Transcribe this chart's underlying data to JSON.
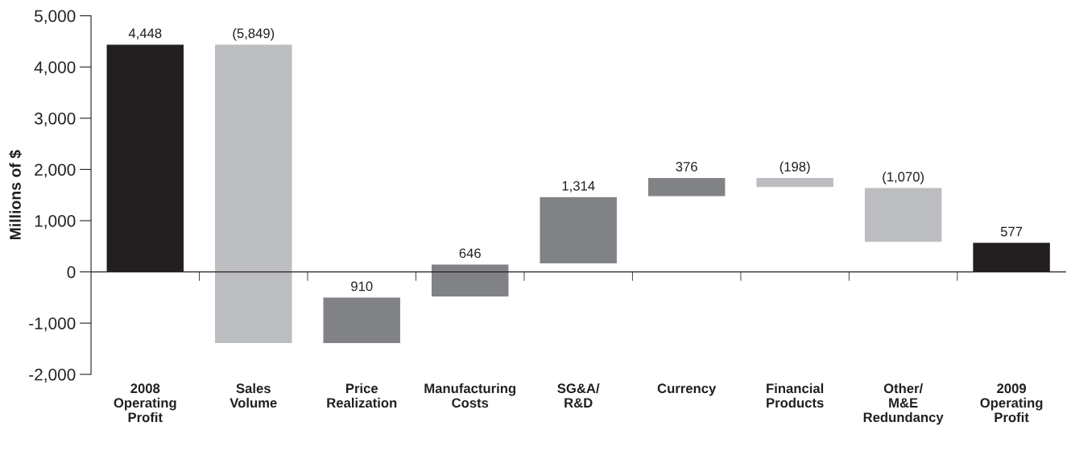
{
  "chart_data": {
    "type": "bar",
    "ylabel": "Millions of $",
    "categories": [
      "2008\nOperating\nProfit",
      "Sales\nVolume",
      "Price\nRealization",
      "Manufacturing\nCosts",
      "SG&A/\nR&D",
      "Currency",
      "Financial\nProducts",
      "Other/\nM&E\nRedundancy",
      "2009\nOperating\nProfit"
    ],
    "values": [
      4448,
      -5849,
      910,
      646,
      1314,
      376,
      -198,
      -1070,
      577
    ],
    "base": [
      0,
      4448,
      -1401,
      -491,
      155,
      1469,
      1845,
      1647,
      0
    ],
    "colors": [
      "#231f20",
      "#bcbdc0",
      "#808285",
      "#808285",
      "#808285",
      "#808285",
      "#bcbdc0",
      "#bcbdc0",
      "#231f20"
    ],
    "value_labels": [
      "4,448",
      "(5,849)",
      "910",
      "646",
      "1,314",
      "376",
      "(198)",
      "(1,070)",
      "577"
    ],
    "ylim": [
      -2000,
      5000
    ],
    "yticks": [
      {
        "value": -2000,
        "label": "-2,000"
      },
      {
        "value": -1000,
        "label": "-1,000"
      },
      0,
      {
        "value": 1000,
        "label": "1,000"
      },
      {
        "value": 2000,
        "label": "2,000"
      },
      {
        "value": 3000,
        "label": "3,000"
      },
      {
        "value": 4000,
        "label": "4,000"
      },
      {
        "value": 5000,
        "label": "5,000"
      }
    ],
    "legend": false
  }
}
